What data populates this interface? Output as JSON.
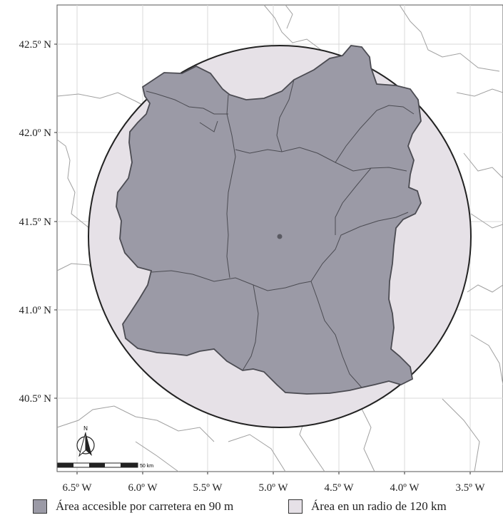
{
  "map": {
    "lat_ticks": [
      "42.5º N",
      "42.0º N",
      "41.5º N",
      "41.0º N",
      "40.5º N"
    ],
    "lon_ticks": [
      "6.5º W",
      "6.0º W",
      "5.5º W",
      "5.0º W",
      "4.5º W",
      "4.0º W",
      "3.5º W"
    ],
    "north_arrow_label": "N",
    "scale_bar_label": "50 km"
  },
  "colors": {
    "accessible_fill": "#9b9aa6",
    "radius_fill": "#e6e1e7",
    "outline": "#222222",
    "borders": "#9a9a9a",
    "center_point": "#5a5a62"
  },
  "legend": [
    {
      "label": "Área accesible por carretera en 90 m",
      "color": "#9b9aa6"
    },
    {
      "label": "Área en un radio de 120 km",
      "color": "#e6e1e7"
    }
  ]
}
